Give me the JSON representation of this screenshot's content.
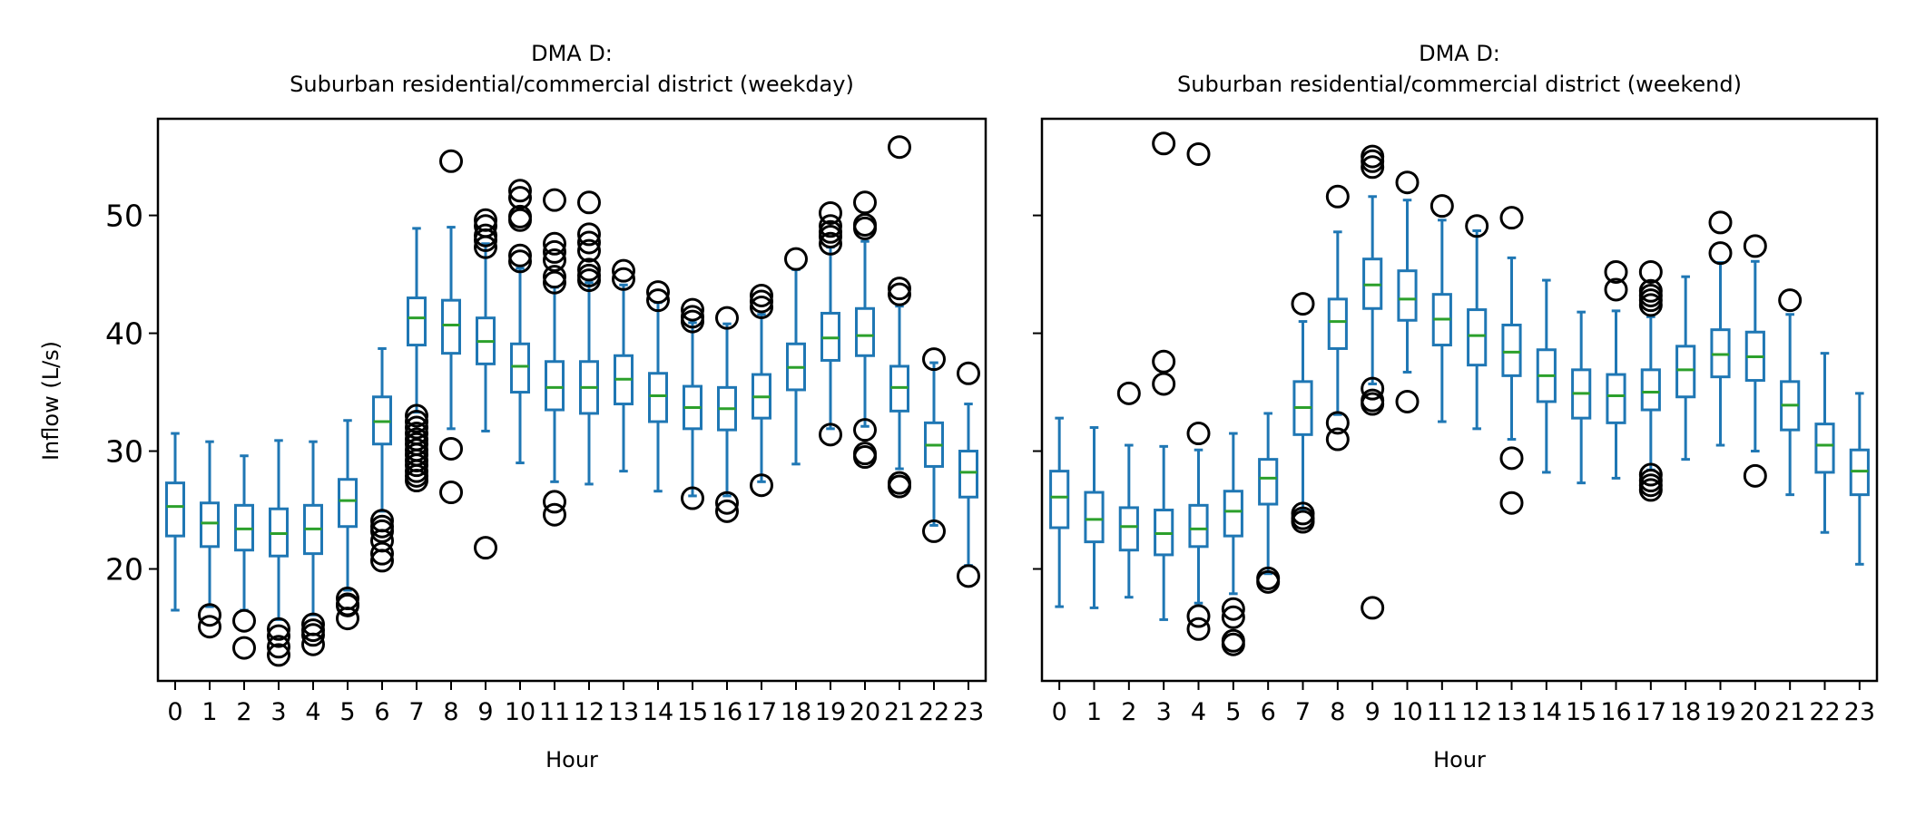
{
  "figure": {
    "ylabel": "Inflow (L/s)",
    "yticks": [
      20,
      30,
      40,
      50
    ],
    "ylim": [
      10.5,
      58.2
    ],
    "colors": {
      "box": "#1f77b4",
      "median": "#2ca02c",
      "flier": "#000000"
    }
  },
  "chart_data": [
    {
      "type": "box",
      "title": "DMA D:",
      "subtitle": "Suburban residential/commercial district (weekday)",
      "xlabel": "Hour",
      "ylabel": "Inflow (L/s)",
      "categories": [
        "0",
        "1",
        "2",
        "3",
        "4",
        "5",
        "6",
        "7",
        "8",
        "9",
        "10",
        "11",
        "12",
        "13",
        "14",
        "15",
        "16",
        "17",
        "18",
        "19",
        "20",
        "21",
        "22",
        "23"
      ],
      "boxes": [
        {
          "whislo": 16.5,
          "q1": 22.8,
          "med": 25.3,
          "q3": 27.3,
          "whishi": 31.5,
          "fliers": []
        },
        {
          "whislo": 16.8,
          "q1": 21.9,
          "med": 23.9,
          "q3": 25.6,
          "whishi": 30.8,
          "fliers": [
            16.1,
            15.1
          ]
        },
        {
          "whislo": 16.5,
          "q1": 21.6,
          "med": 23.4,
          "q3": 25.4,
          "whishi": 29.6,
          "fliers": [
            15.6,
            13.3
          ]
        },
        {
          "whislo": 15.7,
          "q1": 21.1,
          "med": 23.0,
          "q3": 25.1,
          "whishi": 30.9,
          "fliers": [
            14.9,
            14.3,
            13.4,
            12.7
          ]
        },
        {
          "whislo": 16.1,
          "q1": 21.3,
          "med": 23.4,
          "q3": 25.4,
          "whishi": 30.8,
          "fliers": [
            15.3,
            14.8,
            14.4,
            13.6
          ]
        },
        {
          "whislo": 18.2,
          "q1": 23.6,
          "med": 25.8,
          "q3": 27.6,
          "whishi": 32.6,
          "fliers": [
            17.5,
            17.0,
            16.9,
            15.8
          ]
        },
        {
          "whislo": 24.9,
          "q1": 30.6,
          "med": 32.5,
          "q3": 34.6,
          "whishi": 38.7,
          "fliers": [
            24.1,
            23.6,
            23.2,
            22.4,
            21.3,
            20.7
          ]
        },
        {
          "whislo": 33.3,
          "q1": 39.0,
          "med": 41.3,
          "q3": 43.0,
          "whishi": 48.9,
          "fliers": [
            33.0,
            32.5,
            32.0,
            31.5,
            31.0,
            30.6,
            30.1,
            29.7,
            29.2,
            28.8,
            28.3,
            27.9,
            27.5
          ]
        },
        {
          "whislo": 31.9,
          "q1": 38.3,
          "med": 40.7,
          "q3": 42.8,
          "whishi": 49.0,
          "fliers": [
            54.6,
            30.2,
            26.5
          ]
        },
        {
          "whislo": 31.7,
          "q1": 37.4,
          "med": 39.3,
          "q3": 41.3,
          "whishi": 47.6,
          "fliers": [
            49.6,
            49.1,
            48.3,
            47.9,
            47.3,
            21.8
          ]
        },
        {
          "whislo": 29.0,
          "q1": 35.0,
          "med": 37.2,
          "q3": 39.1,
          "whishi": 45.5,
          "fliers": [
            52.1,
            51.5,
            49.9,
            49.6,
            46.6,
            46.1
          ]
        },
        {
          "whislo": 27.4,
          "q1": 33.5,
          "med": 35.4,
          "q3": 37.6,
          "whishi": 43.9,
          "fliers": [
            51.3,
            47.6,
            46.9,
            46.2,
            44.8,
            44.3,
            25.7,
            24.6
          ]
        },
        {
          "whislo": 27.2,
          "q1": 33.2,
          "med": 35.4,
          "q3": 37.6,
          "whishi": 44.3,
          "fliers": [
            51.1,
            48.4,
            47.7,
            47.0,
            45.4,
            44.9,
            44.5
          ]
        },
        {
          "whislo": 28.3,
          "q1": 34.0,
          "med": 36.1,
          "q3": 38.1,
          "whishi": 44.1,
          "fliers": [
            45.3,
            44.6
          ]
        },
        {
          "whislo": 26.6,
          "q1": 32.5,
          "med": 34.7,
          "q3": 36.6,
          "whishi": 42.6,
          "fliers": [
            43.5,
            42.8
          ]
        },
        {
          "whislo": 26.2,
          "q1": 31.9,
          "med": 33.7,
          "q3": 35.5,
          "whishi": 40.9,
          "fliers": [
            42.0,
            41.4,
            41.0,
            26.0
          ]
        },
        {
          "whislo": 26.2,
          "q1": 31.8,
          "med": 33.6,
          "q3": 35.4,
          "whishi": 40.8,
          "fliers": [
            41.3,
            25.6,
            24.9
          ]
        },
        {
          "whislo": 27.4,
          "q1": 32.8,
          "med": 34.6,
          "q3": 36.5,
          "whishi": 41.6,
          "fliers": [
            43.2,
            42.7,
            42.2,
            27.1
          ]
        },
        {
          "whislo": 28.9,
          "q1": 35.2,
          "med": 37.1,
          "q3": 39.1,
          "whishi": 45.4,
          "fliers": [
            46.3
          ]
        },
        {
          "whislo": 31.9,
          "q1": 37.7,
          "med": 39.6,
          "q3": 41.7,
          "whishi": 47.3,
          "fliers": [
            50.2,
            49.1,
            48.6,
            48.2,
            47.6,
            31.4
          ]
        },
        {
          "whislo": 32.1,
          "q1": 38.1,
          "med": 39.8,
          "q3": 42.1,
          "whishi": 47.8,
          "fliers": [
            51.1,
            49.2,
            48.9,
            31.8,
            29.8,
            29.5
          ]
        },
        {
          "whislo": 28.5,
          "q1": 33.4,
          "med": 35.4,
          "q3": 37.2,
          "whishi": 42.3,
          "fliers": [
            55.8,
            43.8,
            43.3,
            27.3,
            27.0
          ]
        },
        {
          "whislo": 23.7,
          "q1": 28.7,
          "med": 30.5,
          "q3": 32.4,
          "whishi": 37.5,
          "fliers": [
            37.8,
            23.2
          ]
        },
        {
          "whislo": 20.3,
          "q1": 26.1,
          "med": 28.2,
          "q3": 30.0,
          "whishi": 34.0,
          "fliers": [
            36.6,
            19.4
          ]
        }
      ]
    },
    {
      "type": "box",
      "title": "DMA D:",
      "subtitle": "Suburban residential/commercial district (weekend)",
      "xlabel": "Hour",
      "ylabel": "",
      "categories": [
        "0",
        "1",
        "2",
        "3",
        "4",
        "5",
        "6",
        "7",
        "8",
        "9",
        "10",
        "11",
        "12",
        "13",
        "14",
        "15",
        "16",
        "17",
        "18",
        "19",
        "20",
        "21",
        "22",
        "23"
      ],
      "boxes": [
        {
          "whislo": 16.8,
          "q1": 23.5,
          "med": 26.1,
          "q3": 28.3,
          "whishi": 32.8,
          "fliers": []
        },
        {
          "whislo": 16.7,
          "q1": 22.3,
          "med": 24.2,
          "q3": 26.5,
          "whishi": 32.0,
          "fliers": []
        },
        {
          "whislo": 17.6,
          "q1": 21.6,
          "med": 23.6,
          "q3": 25.2,
          "whishi": 30.5,
          "fliers": [
            34.9
          ]
        },
        {
          "whislo": 15.7,
          "q1": 21.2,
          "med": 23.0,
          "q3": 25.0,
          "whishi": 30.4,
          "fliers": [
            56.1,
            37.6,
            35.7
          ]
        },
        {
          "whislo": 17.1,
          "q1": 21.9,
          "med": 23.4,
          "q3": 25.4,
          "whishi": 30.1,
          "fliers": [
            55.2,
            31.5,
            16.0,
            14.9
          ]
        },
        {
          "whislo": 17.9,
          "q1": 22.8,
          "med": 24.9,
          "q3": 26.6,
          "whishi": 31.5,
          "fliers": [
            16.6,
            15.9,
            13.9,
            13.6
          ]
        },
        {
          "whislo": 19.6,
          "q1": 25.5,
          "med": 27.7,
          "q3": 29.3,
          "whishi": 33.2,
          "fliers": [
            19.2,
            18.9
          ]
        },
        {
          "whislo": 25.1,
          "q1": 31.4,
          "med": 33.7,
          "q3": 35.9,
          "whishi": 41.0,
          "fliers": [
            42.5,
            24.7,
            24.3,
            24.0
          ]
        },
        {
          "whislo": 33.1,
          "q1": 38.7,
          "med": 41.0,
          "q3": 42.9,
          "whishi": 48.6,
          "fliers": [
            51.6,
            32.4,
            31.0
          ]
        },
        {
          "whislo": 35.7,
          "q1": 42.1,
          "med": 44.1,
          "q3": 46.3,
          "whishi": 51.6,
          "fliers": [
            55.0,
            54.6,
            54.1,
            35.3,
            34.3,
            34.0,
            16.7
          ]
        },
        {
          "whislo": 36.7,
          "q1": 41.1,
          "med": 42.9,
          "q3": 45.3,
          "whishi": 51.3,
          "fliers": [
            52.8,
            34.2
          ]
        },
        {
          "whislo": 32.5,
          "q1": 39.0,
          "med": 41.2,
          "q3": 43.3,
          "whishi": 49.6,
          "fliers": [
            50.8
          ]
        },
        {
          "whislo": 31.9,
          "q1": 37.3,
          "med": 39.8,
          "q3": 42.0,
          "whishi": 48.7,
          "fliers": [
            49.1
          ]
        },
        {
          "whislo": 31.0,
          "q1": 36.4,
          "med": 38.4,
          "q3": 40.7,
          "whishi": 46.4,
          "fliers": [
            49.8,
            29.4,
            25.6
          ]
        },
        {
          "whislo": 28.2,
          "q1": 34.2,
          "med": 36.4,
          "q3": 38.6,
          "whishi": 44.5,
          "fliers": []
        },
        {
          "whislo": 27.3,
          "q1": 32.8,
          "med": 34.9,
          "q3": 36.9,
          "whishi": 41.8,
          "fliers": []
        },
        {
          "whislo": 27.7,
          "q1": 32.4,
          "med": 34.7,
          "q3": 36.5,
          "whishi": 41.9,
          "fliers": [
            45.2,
            43.7
          ]
        },
        {
          "whislo": 28.4,
          "q1": 33.5,
          "med": 35.0,
          "q3": 36.9,
          "whishi": 41.4,
          "fliers": [
            45.2,
            43.6,
            43.2,
            42.8,
            42.4,
            28.0,
            27.5,
            27.1,
            26.7
          ]
        },
        {
          "whislo": 29.3,
          "q1": 34.6,
          "med": 36.9,
          "q3": 38.9,
          "whishi": 44.8,
          "fliers": []
        },
        {
          "whislo": 30.5,
          "q1": 36.3,
          "med": 38.2,
          "q3": 40.3,
          "whishi": 46.0,
          "fliers": [
            49.4,
            46.8
          ]
        },
        {
          "whislo": 30.0,
          "q1": 36.0,
          "med": 38.0,
          "q3": 40.1,
          "whishi": 46.1,
          "fliers": [
            47.4,
            27.9
          ]
        },
        {
          "whislo": 26.3,
          "q1": 31.8,
          "med": 33.9,
          "q3": 35.9,
          "whishi": 41.6,
          "fliers": [
            42.8
          ]
        },
        {
          "whislo": 23.1,
          "q1": 28.2,
          "med": 30.5,
          "q3": 32.3,
          "whishi": 38.3,
          "fliers": []
        },
        {
          "whislo": 20.4,
          "q1": 26.3,
          "med": 28.3,
          "q3": 30.1,
          "whishi": 34.9,
          "fliers": []
        }
      ]
    }
  ]
}
